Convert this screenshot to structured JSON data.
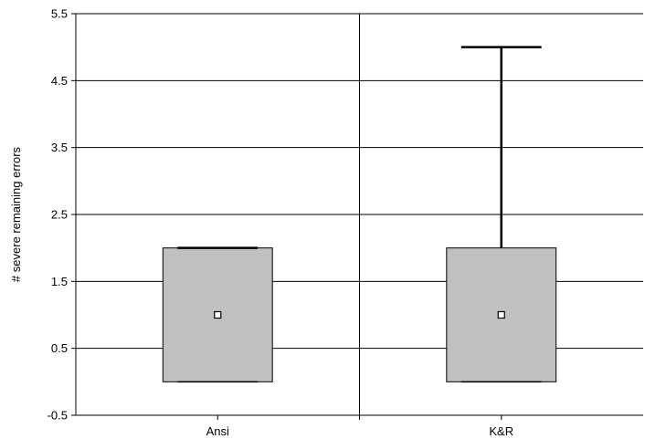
{
  "chart_data": {
    "type": "box",
    "title": "",
    "xlabel": "",
    "ylabel": "# severe remaining errors",
    "ylim": [
      -0.5,
      5.5
    ],
    "yticks": [
      -0.5,
      0.5,
      1.5,
      2.5,
      3.5,
      4.5,
      5.5
    ],
    "ytick_labels": [
      "-0.5",
      "0.5",
      "1.5",
      "2.5",
      "3.5",
      "4.5",
      "5.5"
    ],
    "grid": true,
    "categories": [
      "Ansi",
      "K&R"
    ],
    "boxes": [
      {
        "category": "Ansi",
        "whisker_low": 0,
        "q1": 0,
        "center": 1,
        "q3": 2,
        "whisker_high": 2
      },
      {
        "category": "K&R",
        "whisker_low": 0,
        "q1": 0,
        "center": 1,
        "q3": 2,
        "whisker_high": 5
      }
    ],
    "colors": {
      "box_fill": "#c0c0c0",
      "line": "#000000",
      "marker_fill": "#ffffff"
    }
  }
}
